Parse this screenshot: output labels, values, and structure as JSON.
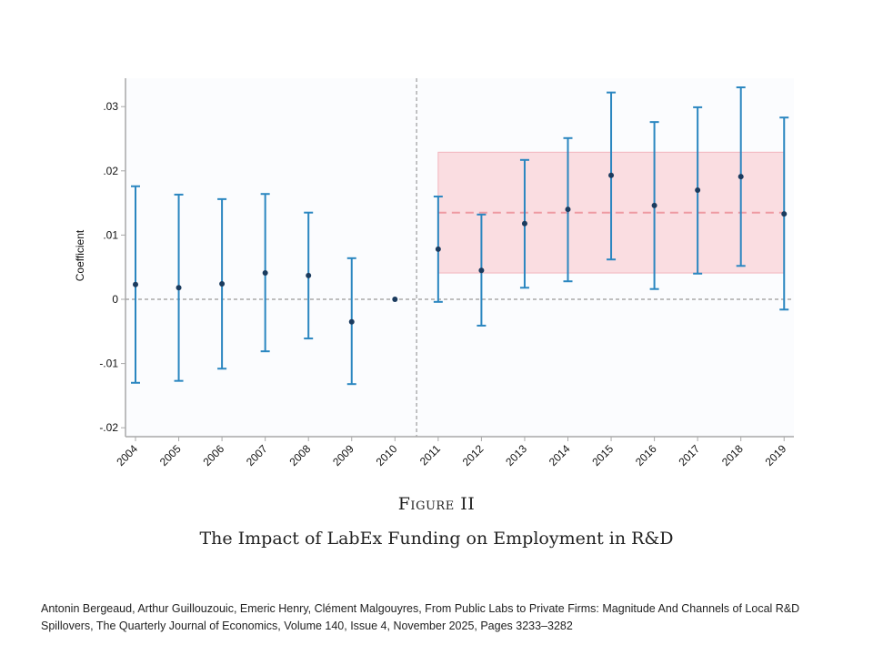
{
  "chart_data": {
    "type": "scatter",
    "subtype": "coefficient plot with confidence intervals",
    "title": "The Impact of LabEx Funding on Employment in R&D",
    "figure_label": "Figure II",
    "xlabel": "",
    "ylabel": "Coefficient",
    "categories": [
      "2004",
      "2005",
      "2006",
      "2007",
      "2008",
      "2009",
      "2010",
      "2011",
      "2012",
      "2013",
      "2014",
      "2015",
      "2016",
      "2017",
      "2018",
      "2019"
    ],
    "series": [
      {
        "name": "Coefficient",
        "values": [
          0.0023,
          0.0018,
          0.0024,
          0.0041,
          0.0037,
          -0.0035,
          0.0,
          0.0078,
          0.0045,
          0.0118,
          0.014,
          0.0193,
          0.0146,
          0.017,
          0.0191,
          0.0133
        ],
        "ci_upper": [
          0.0176,
          0.0163,
          0.0156,
          0.0164,
          0.0135,
          0.0064,
          null,
          0.016,
          0.0132,
          0.0217,
          0.0251,
          0.0322,
          0.0276,
          0.0299,
          0.033,
          0.0283
        ],
        "ci_lower": [
          -0.013,
          -0.0127,
          -0.0108,
          -0.0081,
          -0.0061,
          -0.0132,
          null,
          -0.0004,
          -0.0041,
          0.0018,
          0.0028,
          0.0062,
          0.0016,
          0.004,
          0.0052,
          -0.0016
        ]
      }
    ],
    "pooled_post_effect": {
      "from": "2011",
      "to": "2019",
      "estimate": 0.0135,
      "ci_lower": 0.0041,
      "ci_upper": 0.0229
    },
    "reference_lines": {
      "y_zero": 0,
      "x_vertical_between": [
        "2010",
        "2011"
      ]
    },
    "yticks": [
      0.03,
      0.02,
      0.01,
      0,
      -0.01,
      -0.02
    ],
    "ytick_labels": [
      ".03",
      ".02",
      ".01",
      "0",
      "-.01",
      "-.02"
    ],
    "ylim": [
      -0.0215,
      0.0345
    ],
    "grid": false,
    "legend": "none",
    "colors": {
      "ci_bar": "#2a86c0",
      "point": "#1b3b5e",
      "band_fill": "#fadde1",
      "band_edge": "#f2b4bd",
      "pooled_line": "#ee9aa2",
      "ref_line": "#999999",
      "plot_bg": "#fbfcfe",
      "axis": "#a8a8a8"
    }
  },
  "caption": {
    "figure_label": "Figure II",
    "title": "The Impact of LabEx Funding on Employment in R&D"
  },
  "citation": {
    "line1": "Antonin Bergeaud, Arthur Guillouzouic, Emeric Henry, Clément Malgouyres, From Public Labs to Private Firms: Magnitude And Channels of Local R&D",
    "line2": "Spillovers, The Quarterly Journal of Economics, Volume 140, Issue 4, November 2025, Pages 3233–3282"
  }
}
